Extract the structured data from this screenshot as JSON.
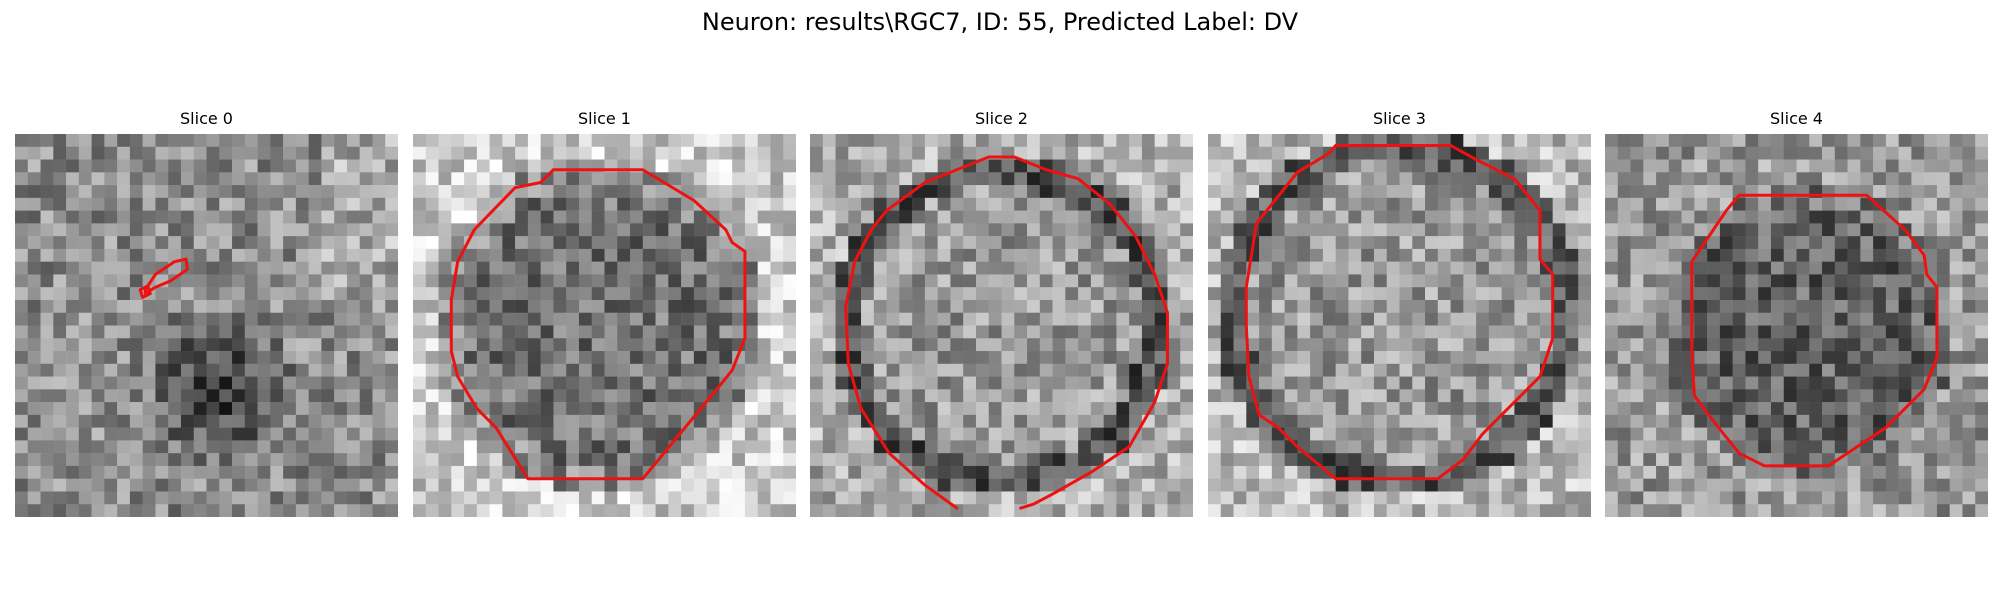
{
  "figure": {
    "suptitle": "Neuron: results\\RGC7, ID: 55, Predicted Label: DV"
  },
  "colors": {
    "contour": "#ee1111",
    "background": "#ffffff"
  },
  "panels": [
    {
      "title": "Slice 0",
      "image_description_icon": "grayscale-noise-tile",
      "contour": "small-blob",
      "seed": 11
    },
    {
      "title": "Slice 1",
      "image_description_icon": "grayscale-cell-tile",
      "contour": "octagon",
      "seed": 23
    },
    {
      "title": "Slice 2",
      "image_description_icon": "grayscale-cell-tile",
      "contour": "round-open",
      "seed": 37
    },
    {
      "title": "Slice 3",
      "image_description_icon": "grayscale-cell-tile",
      "contour": "round",
      "seed": 41
    },
    {
      "title": "Slice 4",
      "image_description_icon": "grayscale-cell-tile",
      "contour": "round-small",
      "seed": 53
    }
  ]
}
